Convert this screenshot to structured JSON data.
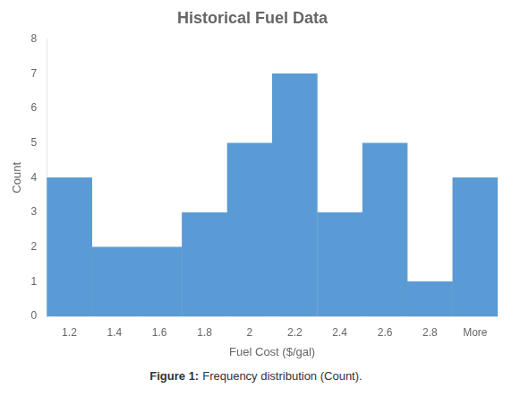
{
  "chart_data": {
    "type": "bar",
    "title": "Historical Fuel Data",
    "xlabel": "Fuel Cost ($/gal)",
    "ylabel": "Count",
    "categories": [
      "1.2",
      "1.4",
      "1.6",
      "1.8",
      "2",
      "2.2",
      "2.4",
      "2.6",
      "2.8",
      "More"
    ],
    "values": [
      4,
      2,
      2,
      3,
      5,
      7,
      3,
      5,
      1,
      4
    ],
    "color": "#5B9BD5",
    "ylim": [
      0,
      8
    ],
    "yticks": [
      0,
      1,
      2,
      3,
      4,
      5,
      6,
      7,
      8
    ],
    "grid": false,
    "annotations": [
      "Figure 1:",
      "Frequency distribution (Count)."
    ]
  }
}
